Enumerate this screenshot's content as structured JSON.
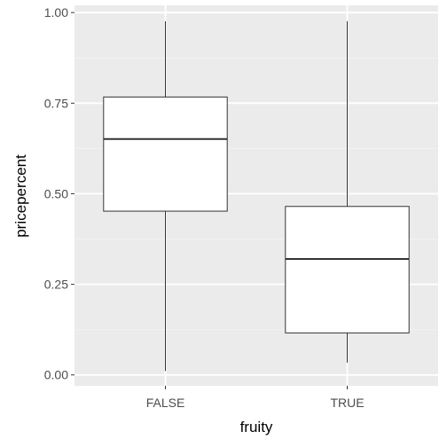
{
  "chart_data": {
    "type": "boxplot",
    "title": "",
    "xlabel": "fruity",
    "ylabel": "pricepercent",
    "categories": [
      "FALSE",
      "TRUE"
    ],
    "boxes": [
      {
        "category": "FALSE",
        "min": 0.011,
        "q1": 0.452,
        "median": 0.651,
        "q3": 0.767,
        "max": 0.976
      },
      {
        "category": "TRUE",
        "min": 0.034,
        "q1": 0.116,
        "median": 0.32,
        "q3": 0.465,
        "max": 0.976
      }
    ],
    "ylim": [
      -0.03,
      1.02
    ],
    "yticks": [
      0.0,
      0.25,
      0.5,
      0.75,
      1.0
    ],
    "ytick_labels": [
      "0.00",
      "0.25",
      "0.50",
      "0.75",
      "1.00"
    ],
    "grid": true,
    "legend": "none",
    "colors": {
      "panel_background": "#ebebeb",
      "grid_major": "#ffffff",
      "grid_minor": "#f3f3f3",
      "box_fill": "#ffffff",
      "box_outline": "#333333",
      "tick_text": "#4d4d4d",
      "axis_title": "#000000"
    }
  }
}
